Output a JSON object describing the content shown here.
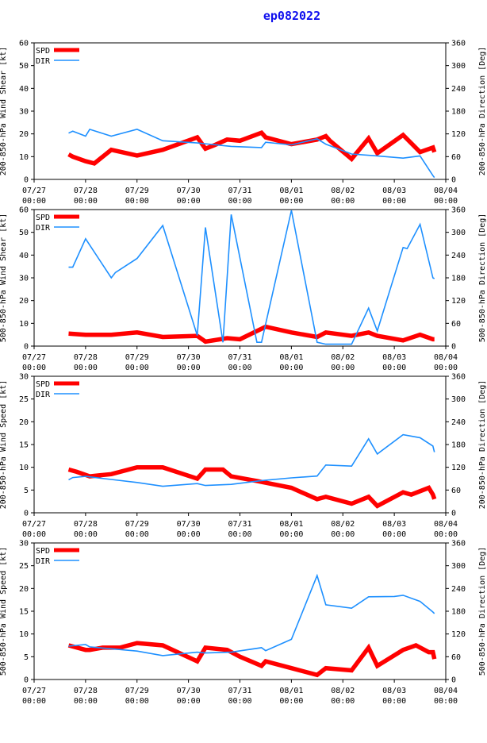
{
  "title": "ep082022",
  "colors": {
    "spd": "#ff0000",
    "dir": "#1e90ff",
    "title": "#1010ee",
    "axis": "#000000"
  },
  "x_tick_labels": [
    [
      "07/27",
      "00:00"
    ],
    [
      "07/28",
      "00:00"
    ],
    [
      "07/29",
      "00:00"
    ],
    [
      "07/30",
      "00:00"
    ],
    [
      "07/31",
      "00:00"
    ],
    [
      "08/01",
      "00:00"
    ],
    [
      "08/02",
      "00:00"
    ],
    [
      "08/03",
      "00:00"
    ],
    [
      "08/04",
      "00:00"
    ]
  ],
  "chart_data": [
    {
      "type": "line",
      "title": "",
      "ylabel_left": "200-850-hPa Wind Shear [kt]",
      "ylabel_right": "200-850-hPa Direction [Deg]",
      "ylim_left": [
        0,
        60
      ],
      "yticks_left": [
        0,
        10,
        20,
        30,
        40,
        50,
        60
      ],
      "ylim_right": [
        0,
        360
      ],
      "yticks_right": [
        0,
        60,
        120,
        180,
        240,
        300,
        360
      ],
      "xlim": [
        0,
        8
      ],
      "legend": [
        "SPD",
        "DIR"
      ],
      "series": [
        {
          "name": "SPD",
          "axis": "left",
          "x": [
            0.67,
            0.75,
            1.0,
            1.17,
            1.5,
            2.0,
            2.5,
            3.17,
            3.33,
            3.5,
            3.75,
            4.0,
            4.42,
            4.5,
            5.0,
            5.5,
            5.67,
            5.75,
            6.17,
            6.5,
            6.67,
            7.17,
            7.5,
            7.75,
            7.78
          ],
          "values": [
            11,
            10,
            8,
            7,
            13,
            10.5,
            13,
            18.5,
            13.5,
            15,
            17.5,
            17,
            20.5,
            18.5,
            15.5,
            17.5,
            19,
            17,
            9,
            18,
            11.5,
            19.5,
            12,
            14,
            12
          ]
        },
        {
          "name": "DIR",
          "axis": "right",
          "x": [
            0.67,
            0.75,
            1.0,
            1.08,
            1.5,
            2.0,
            2.5,
            3.17,
            3.83,
            4.42,
            4.5,
            5.0,
            5.5,
            5.67,
            6.17,
            6.67,
            7.17,
            7.5,
            7.75,
            7.78
          ],
          "values": [
            122,
            127,
            114,
            132,
            114,
            132,
            102,
            96,
            87,
            84,
            98,
            91,
            107,
            93,
            67,
            62,
            56,
            62,
            10,
            5
          ]
        }
      ]
    },
    {
      "type": "line",
      "title": "",
      "ylabel_left": "500-850-hPa Wind Shear [kt]",
      "ylabel_right": "500-850-hPa Direction [Deg]",
      "ylim_left": [
        0,
        60
      ],
      "yticks_left": [
        0,
        10,
        20,
        30,
        40,
        50,
        60
      ],
      "ylim_right": [
        0,
        360
      ],
      "yticks_right": [
        0,
        60,
        120,
        180,
        240,
        300,
        360
      ],
      "xlim": [
        0,
        8
      ],
      "legend": [
        "SPD",
        "DIR"
      ],
      "series": [
        {
          "name": "SPD",
          "axis": "left",
          "x": [
            0.67,
            1.0,
            1.5,
            2.0,
            2.5,
            3.17,
            3.33,
            3.75,
            4.0,
            4.5,
            5.0,
            5.5,
            5.67,
            6.17,
            6.5,
            6.67,
            7.17,
            7.5,
            7.75,
            7.78
          ],
          "values": [
            5.5,
            5,
            5,
            6,
            4,
            4.5,
            2,
            3.5,
            3,
            8.5,
            6,
            4,
            6,
            4.5,
            6,
            4.5,
            2.5,
            5,
            3,
            3
          ]
        },
        {
          "name": "DIR",
          "axis": "right",
          "x": [
            0.67,
            0.75,
            1.0,
            1.5,
            1.58,
            2.0,
            2.5,
            3.17,
            3.33,
            3.67,
            3.83,
            4.33,
            4.42,
            5.0,
            5.5,
            5.67,
            6.17,
            6.17,
            6.5,
            6.67,
            6.67,
            7.17,
            7.25,
            7.5,
            7.75,
            7.78
          ],
          "values": [
            208,
            208,
            283,
            180,
            194,
            231,
            318,
            28,
            313,
            10,
            347,
            10,
            10,
            358,
            10,
            5,
            5,
            5,
            100,
            40,
            40,
            260,
            257,
            321,
            180,
            178
          ]
        }
      ]
    },
    {
      "type": "line",
      "title": "",
      "ylabel_left": "200-850-hPa Wind Speed [kt]",
      "ylabel_right": "200-850-hPa Direction [Deg]",
      "ylim_left": [
        0,
        30
      ],
      "yticks_left": [
        0,
        5,
        10,
        15,
        20,
        25,
        30
      ],
      "ylim_right": [
        0,
        360
      ],
      "yticks_right": [
        0,
        60,
        120,
        180,
        240,
        300,
        360
      ],
      "xlim": [
        0,
        8
      ],
      "legend": [
        "SPD",
        "DIR"
      ],
      "series": [
        {
          "name": "SPD",
          "axis": "left",
          "x": [
            0.67,
            0.83,
            1.08,
            1.5,
            2.0,
            2.5,
            3.17,
            3.33,
            3.67,
            3.83,
            4.33,
            5.0,
            5.5,
            5.67,
            6.17,
            6.5,
            6.67,
            7.17,
            7.33,
            7.67,
            7.75,
            7.78
          ],
          "values": [
            9.5,
            9,
            8,
            8.5,
            10,
            10,
            7.5,
            9.5,
            9.5,
            8,
            7,
            5.5,
            3,
            3.5,
            2,
            3.5,
            1.5,
            4.5,
            4,
            5.5,
            4,
            3
          ]
        },
        {
          "name": "DIR",
          "axis": "right",
          "x": [
            0.67,
            0.75,
            1.0,
            1.5,
            2.0,
            2.5,
            3.17,
            3.33,
            3.83,
            4.42,
            5.0,
            5.5,
            5.67,
            6.17,
            6.5,
            6.67,
            7.17,
            7.5,
            7.75,
            7.78
          ],
          "values": [
            87,
            93,
            96,
            88,
            80,
            70,
            77,
            72,
            75,
            85,
            92,
            97,
            126,
            123,
            195,
            155,
            206,
            198,
            176,
            160
          ]
        }
      ]
    },
    {
      "type": "line",
      "title": "",
      "ylabel_left": "500-850-hPa Wind Speed [kt]",
      "ylabel_right": "500-850-hPa Direction [Deg]",
      "ylim_left": [
        0,
        30
      ],
      "yticks_left": [
        0,
        5,
        10,
        15,
        20,
        25,
        30
      ],
      "ylim_right": [
        0,
        360
      ],
      "yticks_right": [
        0,
        60,
        120,
        180,
        240,
        300,
        360
      ],
      "xlim": [
        0,
        8
      ],
      "legend": [
        "SPD",
        "DIR"
      ],
      "series": [
        {
          "name": "SPD",
          "axis": "left",
          "x": [
            0.67,
            1.0,
            1.08,
            1.33,
            1.67,
            2.0,
            2.5,
            3.17,
            3.33,
            3.75,
            4.0,
            4.42,
            4.5,
            5.0,
            5.5,
            5.67,
            6.17,
            6.5,
            6.67,
            7.17,
            7.42,
            7.67,
            7.75,
            7.78
          ],
          "values": [
            7.5,
            6.5,
            6.5,
            7,
            7,
            8,
            7.5,
            4,
            7,
            6.5,
            5,
            3,
            4,
            2.5,
            1,
            2.5,
            2,
            7,
            3,
            6.5,
            7.5,
            6,
            6,
            4.5
          ]
        },
        {
          "name": "DIR",
          "axis": "right",
          "x": [
            0.67,
            1.0,
            1.08,
            1.5,
            2.0,
            2.5,
            3.17,
            3.33,
            3.83,
            4.42,
            4.5,
            5.0,
            5.5,
            5.67,
            6.17,
            6.5,
            7.0,
            7.17,
            7.5,
            7.75,
            7.78
          ],
          "values": [
            88,
            92,
            86,
            81,
            75,
            63,
            72,
            70,
            72,
            84,
            76,
            106,
            274,
            197,
            188,
            218,
            219,
            222,
            206,
            178,
            174
          ]
        }
      ]
    }
  ]
}
